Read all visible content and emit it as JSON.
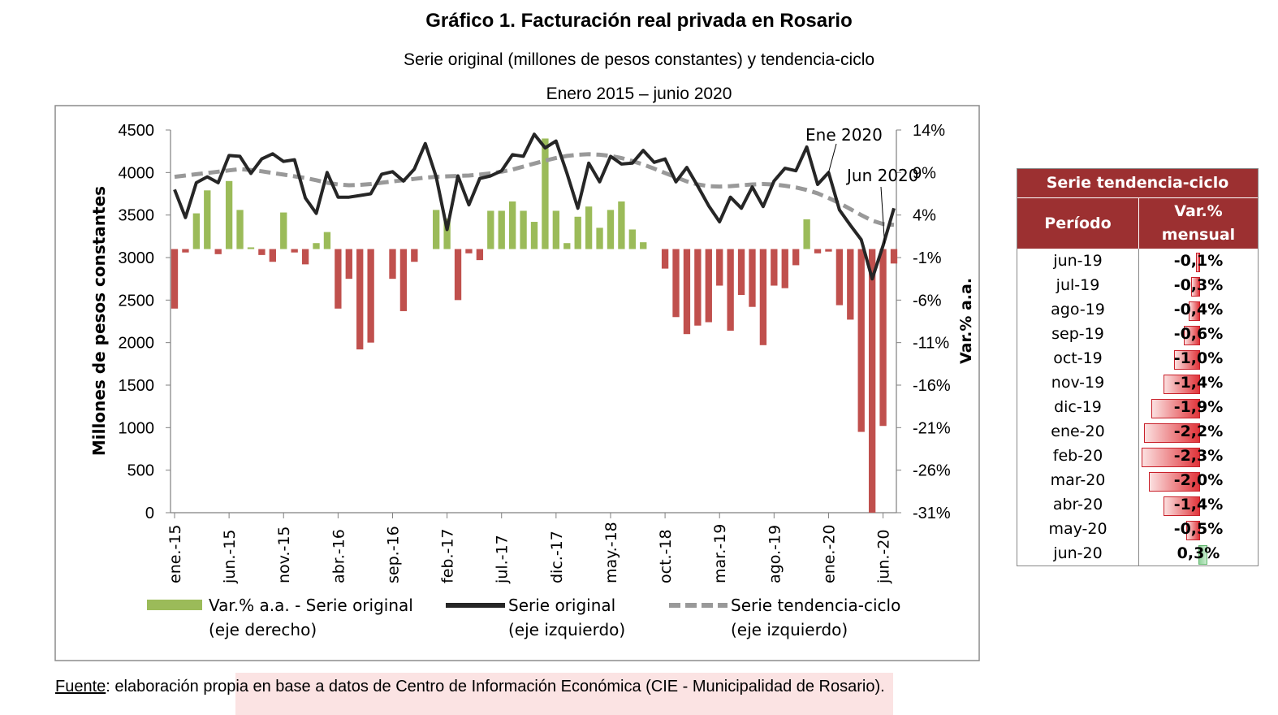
{
  "header": {
    "title": "Gráfico 1. Facturación real privada en Rosario",
    "subtitle": "Serie original (millones de pesos constantes) y tendencia-ciclo",
    "period": "Enero 2015 – junio 2020"
  },
  "footer": {
    "source_label": "Fuente",
    "source_text": ": elaboración propia en base a datos de Centro de Información Económica (CIE - Municipalidad de Rosario)."
  },
  "chart_data": [
    {
      "type": "bar+line",
      "ylabel": "Millones de pesos constantes",
      "y2label": "Var.% a.a.",
      "ylim": [
        0,
        4500
      ],
      "y2lim": [
        -31,
        14
      ],
      "y_ticks": [
        "0",
        "500",
        "1000",
        "1500",
        "2000",
        "2500",
        "3000",
        "3500",
        "4000",
        "4500"
      ],
      "y2_ticks": [
        "-31%",
        "-26%",
        "-21%",
        "-16%",
        "-11%",
        "-6%",
        "-1%",
        "4%",
        "9%",
        "14%"
      ],
      "x_tick_labels": [
        "ene.-15",
        "jun.-15",
        "nov.-15",
        "abr.-16",
        "sep.-16",
        "feb.-17",
        "jul.-17",
        "dic.-17",
        "may.-18",
        "oct.-18",
        "mar.-19",
        "ago.-19",
        "ene.-20",
        "jun.-20"
      ],
      "x_start": "2015-01",
      "x_end": "2020-06",
      "annotations": [
        "Ene 2020",
        "Jun 2020"
      ],
      "legend": [
        {
          "label": "Var.% a.a. - Serie original",
          "label2": "(eje derecho)",
          "color": "#9bbb59"
        },
        {
          "label": "Serie original",
          "label2": "(eje izquierdo)",
          "color": "#262626"
        },
        {
          "label": "Serie tendencia-ciclo",
          "label2": "(eje izquierdo)",
          "color": "#999999"
        }
      ],
      "series": [
        {
          "name": "Var.% a.a. - Serie original",
          "axis": "right",
          "positive_color": "#9bbb59",
          "negative_color": "#c0504d",
          "values": [
            -7.0,
            -0.4,
            4.2,
            6.9,
            -0.6,
            8.0,
            4.6,
            0.2,
            -0.7,
            -1.5,
            4.3,
            -0.4,
            -1.8,
            0.7,
            2.0,
            -7.0,
            -3.5,
            -11.8,
            -11.0,
            0,
            -3.5,
            -7.3,
            -1.5,
            0,
            4.6,
            3.6,
            -6.0,
            -0.5,
            -1.3,
            4.5,
            4.5,
            5.6,
            4.5,
            3.2,
            13.0,
            4.5,
            0.7,
            3.8,
            5.0,
            2.5,
            4.6,
            5.6,
            2.3,
            0.8,
            0,
            -2.3,
            -8.0,
            -10.0,
            -9.0,
            -8.6,
            -4.3,
            -9.6,
            -5.4,
            -6.8,
            -11.3,
            -4.3,
            -4.6,
            -1.9,
            3.5,
            -0.5,
            -0.3,
            -6.6,
            -8.3,
            -21.5,
            -31.0,
            -20.8,
            -1.7
          ]
        },
        {
          "name": "Serie original",
          "axis": "left",
          "values": [
            3800,
            3470,
            3880,
            3950,
            3880,
            4200,
            4190,
            3990,
            4160,
            4220,
            4130,
            4150,
            3700,
            3520,
            4000,
            3710,
            3710,
            3730,
            3750,
            3980,
            4010,
            3900,
            4040,
            4340,
            3950,
            3330,
            3960,
            3620,
            3930,
            3960,
            4020,
            4210,
            4190,
            4450,
            4290,
            4370,
            3990,
            3580,
            4110,
            3890,
            4190,
            4100,
            4110,
            4260,
            4120,
            4160,
            3890,
            4060,
            3840,
            3610,
            3420,
            3710,
            3580,
            3830,
            3600,
            3900,
            4050,
            4020,
            4300,
            3860,
            4000,
            3560,
            3380,
            3210,
            2750,
            3140,
            3580
          ]
        },
        {
          "name": "Serie tendencia-ciclo",
          "axis": "left",
          "values": [
            3950,
            3965,
            3980,
            3995,
            4010,
            4025,
            4040,
            4030,
            4015,
            3995,
            3975,
            3955,
            3935,
            3910,
            3880,
            3860,
            3850,
            3855,
            3865,
            3880,
            3895,
            3910,
            3925,
            3940,
            3950,
            3955,
            3960,
            3965,
            3975,
            3990,
            4010,
            4035,
            4070,
            4105,
            4140,
            4170,
            4195,
            4210,
            4215,
            4210,
            4195,
            4170,
            4135,
            4095,
            4045,
            3995,
            3945,
            3895,
            3860,
            3840,
            3835,
            3840,
            3850,
            3860,
            3865,
            3860,
            3845,
            3825,
            3795,
            3755,
            3700,
            3640,
            3570,
            3500,
            3435,
            3395,
            3385
          ]
        }
      ]
    },
    {
      "type": "table",
      "title": "Serie tendencia-ciclo",
      "columns": [
        "Período",
        "Var.%",
        "mensual"
      ],
      "rows": [
        {
          "period": "jun-19",
          "value": -0.1,
          "label": "-0,1%"
        },
        {
          "period": "jul-19",
          "value": -0.3,
          "label": "-0,3%"
        },
        {
          "period": "ago-19",
          "value": -0.4,
          "label": "-0,4%"
        },
        {
          "period": "sep-19",
          "value": -0.6,
          "label": "-0,6%"
        },
        {
          "period": "oct-19",
          "value": -1.0,
          "label": "-1,0%"
        },
        {
          "period": "nov-19",
          "value": -1.4,
          "label": "-1,4%"
        },
        {
          "period": "dic-19",
          "value": -1.9,
          "label": "-1,9%"
        },
        {
          "period": "ene-20",
          "value": -2.2,
          "label": "-2,2%"
        },
        {
          "period": "feb-20",
          "value": -2.3,
          "label": "-2,3%"
        },
        {
          "period": "mar-20",
          "value": -2.0,
          "label": "-2,0%"
        },
        {
          "period": "abr-20",
          "value": -1.4,
          "label": "-1,4%"
        },
        {
          "period": "may-20",
          "value": -0.5,
          "label": "-0,5%"
        },
        {
          "period": "jun-20",
          "value": 0.3,
          "label": "0,3%"
        }
      ]
    }
  ]
}
